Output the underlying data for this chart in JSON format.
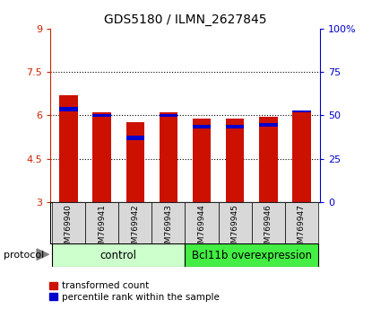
{
  "title": "GDS5180 / ILMN_2627845",
  "samples": [
    "GSM769940",
    "GSM769941",
    "GSM769942",
    "GSM769943",
    "GSM769944",
    "GSM769945",
    "GSM769946",
    "GSM769947"
  ],
  "red_values": [
    6.7,
    6.1,
    5.75,
    6.1,
    5.9,
    5.9,
    5.95,
    6.15
  ],
  "blue_values": [
    6.15,
    5.95,
    5.15,
    5.95,
    5.55,
    5.55,
    5.6,
    6.1
  ],
  "blue_heights": [
    0.13,
    0.1,
    0.13,
    0.1,
    0.13,
    0.13,
    0.13,
    0.08
  ],
  "bar_bottom": 3.0,
  "ylim_left": [
    3,
    9
  ],
  "ylim_right": [
    0,
    100
  ],
  "yticks_left": [
    3,
    4.5,
    6,
    7.5,
    9
  ],
  "yticks_right": [
    0,
    25,
    50,
    75,
    100
  ],
  "ytick_labels_left": [
    "3",
    "4.5",
    "6",
    "7.5",
    "9"
  ],
  "ytick_labels_right": [
    "0",
    "25",
    "50",
    "75",
    "100%"
  ],
  "gridlines": [
    4.5,
    6.0,
    7.5
  ],
  "red_color": "#cc1100",
  "blue_color": "#0000cc",
  "bar_width": 0.55,
  "control_label": "control",
  "overexp_label": "Bcl11b overexpression",
  "protocol_label": "protocol",
  "legend_red": "transformed count",
  "legend_blue": "percentile rank within the sample",
  "control_color": "#ccffcc",
  "overexp_color": "#44ee44",
  "tick_color_red": "#cc2200",
  "tick_color_blue": "#0000cc",
  "label_bg_color": "#d8d8d8",
  "spine_color_left": "#cc2200",
  "spine_color_right": "#0000cc"
}
